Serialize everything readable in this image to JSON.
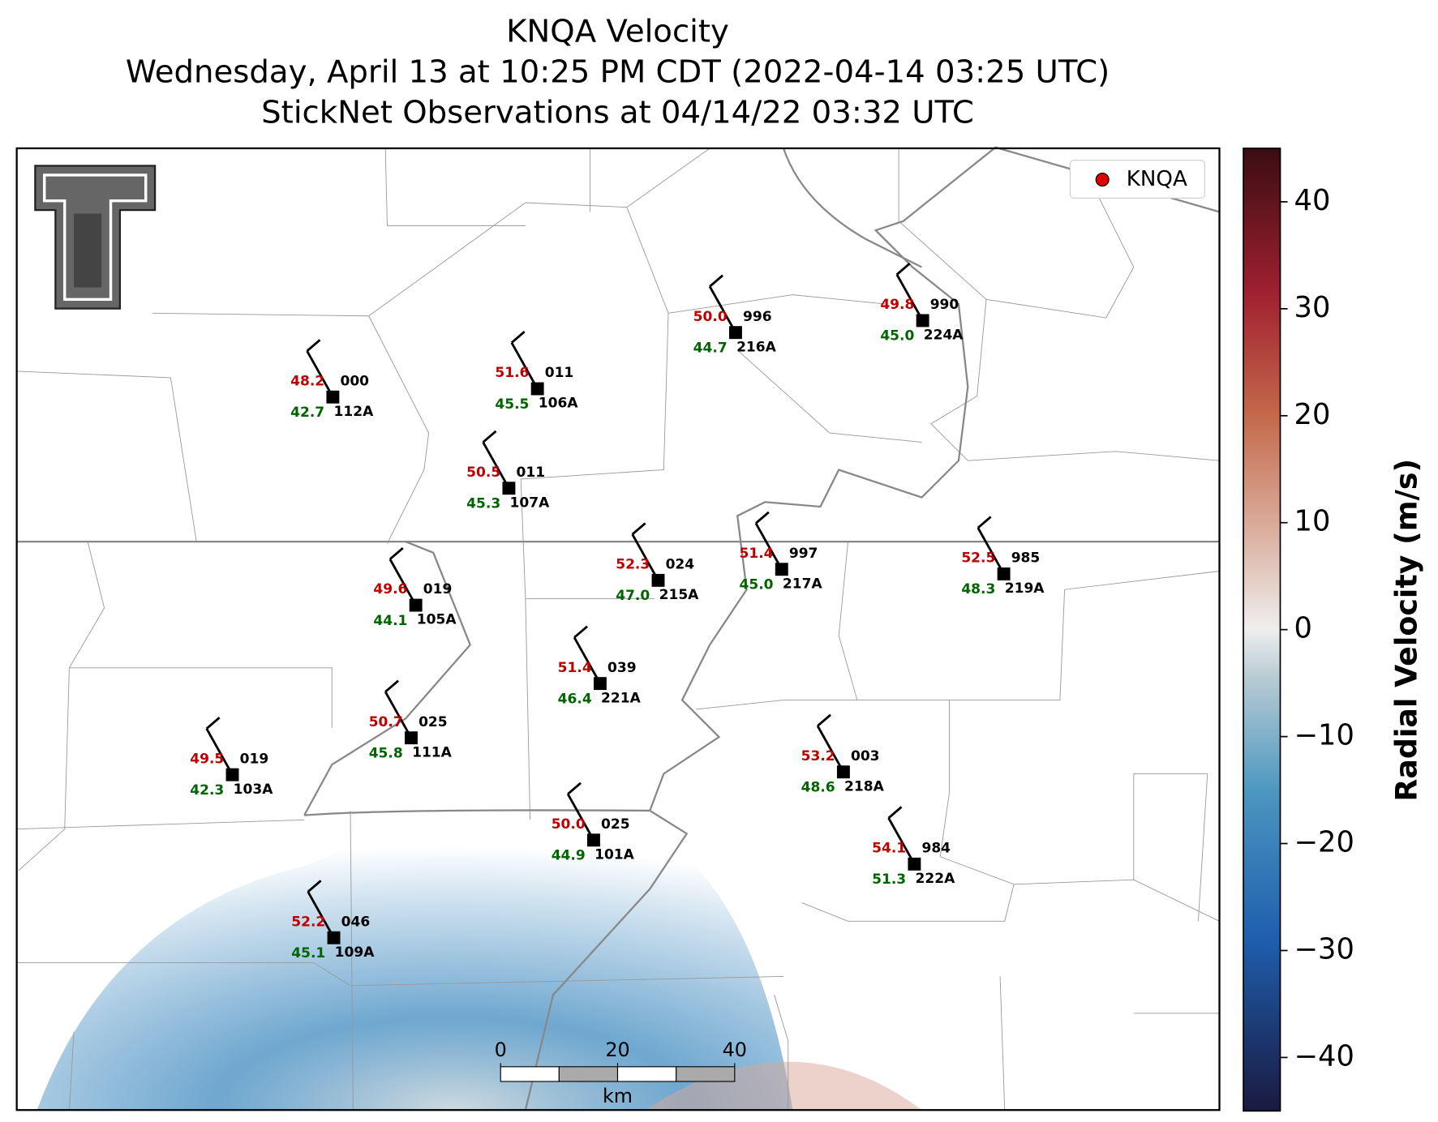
{
  "header": {
    "title": "KNQA Velocity",
    "subtitle": "Wednesday, April 13 at 10:25 PM CDT (2022-04-14 03:25 UTC)",
    "subtitle2": "StickNet Observations at 04/14/22 03:32 UTC"
  },
  "legend": {
    "label": "KNQA",
    "color": "#e00000"
  },
  "stations": [
    {
      "id": "112A",
      "temp": "48.2",
      "dew": "42.7",
      "pres": "000"
    },
    {
      "id": "106A",
      "temp": "51.6",
      "dew": "45.5",
      "pres": "011"
    },
    {
      "id": "107A",
      "temp": "50.5",
      "dew": "45.3",
      "pres": "011"
    },
    {
      "id": "216A",
      "temp": "50.0",
      "dew": "44.7",
      "pres": "996"
    },
    {
      "id": "224A",
      "temp": "49.8",
      "dew": "45.0",
      "pres": "990"
    },
    {
      "id": "105A",
      "temp": "49.6",
      "dew": "44.1",
      "pres": "019"
    },
    {
      "id": "215A",
      "temp": "52.3",
      "dew": "47.0",
      "pres": "024"
    },
    {
      "id": "217A",
      "temp": "51.4",
      "dew": "45.0",
      "pres": "997"
    },
    {
      "id": "219A",
      "temp": "52.5",
      "dew": "48.3",
      "pres": "985"
    },
    {
      "id": "221A",
      "temp": "51.4",
      "dew": "46.4",
      "pres": "039"
    },
    {
      "id": "111A",
      "temp": "50.7",
      "dew": "45.8",
      "pres": "025"
    },
    {
      "id": "103A",
      "temp": "49.5",
      "dew": "42.3",
      "pres": "019"
    },
    {
      "id": "218A",
      "temp": "53.2",
      "dew": "48.6",
      "pres": "003"
    },
    {
      "id": "101A",
      "temp": "50.0",
      "dew": "44.9",
      "pres": "025"
    },
    {
      "id": "222A",
      "temp": "54.1",
      "dew": "51.3",
      "pres": "984"
    },
    {
      "id": "109A",
      "temp": "52.2",
      "dew": "45.1",
      "pres": "046"
    }
  ],
  "colorbar": {
    "label": "Radial Velocity (m/s)",
    "lim": [
      -45,
      45
    ],
    "ticks": [
      {
        "value": -40,
        "label": "−40"
      },
      {
        "value": -30,
        "label": "−30"
      },
      {
        "value": -20,
        "label": "−20"
      },
      {
        "value": -10,
        "label": "−10"
      },
      0,
      10,
      20,
      30,
      40
    ]
  },
  "scale_bar": {
    "ticks": [
      0,
      20,
      40
    ],
    "unit": "km"
  }
}
